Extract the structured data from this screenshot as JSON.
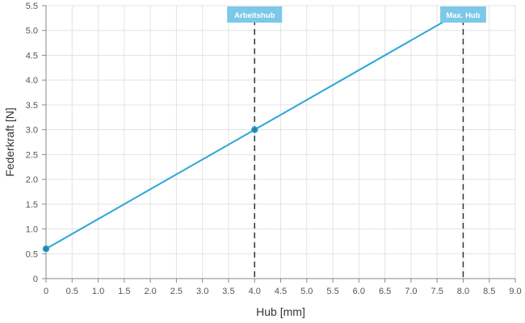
{
  "chart_data": {
    "type": "line",
    "title": "",
    "xlabel": "Hub [mm]",
    "ylabel": "Federkraft [N]",
    "xlim": [
      0,
      9
    ],
    "ylim": [
      0,
      5.5
    ],
    "xticks": [
      "0",
      "0.5",
      "1.0",
      "1.5",
      "2.0",
      "2.5",
      "3.0",
      "3.5",
      "4.0",
      "4.5",
      "5.0",
      "5.5",
      "6.0",
      "6.5",
      "7.0",
      "7.5",
      "8.0",
      "8.5",
      "9.0"
    ],
    "yticks": [
      "0",
      "0.5",
      "1.0",
      "1.5",
      "2.0",
      "2.5",
      "3.0",
      "3.5",
      "4.0",
      "4.5",
      "5.0",
      "5.5"
    ],
    "grid": true,
    "series": [
      {
        "color": "#2aa7d6",
        "points": [
          {
            "x": 0,
            "y": 0.6
          },
          {
            "x": 4,
            "y": 3.0
          },
          {
            "x": 8,
            "y": 5.4
          }
        ]
      }
    ],
    "annotations": [
      {
        "x": 4,
        "label": "Arbeitshub"
      },
      {
        "x": 8,
        "label": "Max. Hub"
      }
    ],
    "colors": {
      "line": "#2aa7d6",
      "marker": "#2b7fa8",
      "annotation_bg": "#7cc8e8",
      "annotation_line": "#333333",
      "grid": "#e3e3e3"
    }
  }
}
